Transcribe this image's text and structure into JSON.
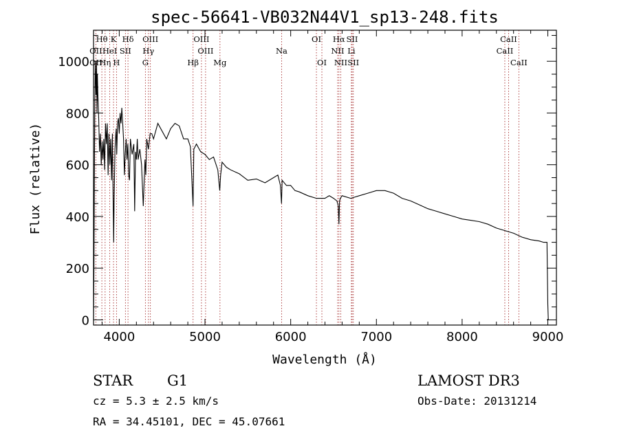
{
  "chart_data": {
    "type": "line",
    "title": "spec-56641-VB032N44V1_sp13-248.fits",
    "xlabel": "Wavelength (Å)",
    "ylabel": "Flux (relative)",
    "xlim": [
      3700,
      9100
    ],
    "ylim": [
      -20,
      1120
    ],
    "x_ticks": [
      4000,
      5000,
      6000,
      7000,
      8000,
      9000
    ],
    "y_ticks": [
      0,
      200,
      400,
      600,
      800,
      1000
    ],
    "x_tick_labels": [
      "4000",
      "5000",
      "6000",
      "7000",
      "8000",
      "9000"
    ],
    "y_tick_labels": [
      "0",
      "200",
      "400",
      "600",
      "800",
      "1000"
    ],
    "series": [
      {
        "name": "flux",
        "x": [
          3700,
          3705,
          3710,
          3715,
          3720,
          3725,
          3730,
          3735,
          3740,
          3745,
          3750,
          3760,
          3770,
          3780,
          3790,
          3800,
          3810,
          3820,
          3830,
          3840,
          3850,
          3860,
          3870,
          3880,
          3890,
          3900,
          3910,
          3920,
          3930,
          3935,
          3940,
          3950,
          3960,
          3965,
          3970,
          3980,
          3990,
          4000,
          4010,
          4020,
          4030,
          4040,
          4050,
          4060,
          4070,
          4080,
          4090,
          4100,
          4110,
          4120,
          4130,
          4150,
          4170,
          4180,
          4190,
          4200,
          4210,
          4220,
          4240,
          4260,
          4280,
          4300,
          4310,
          4320,
          4340,
          4360,
          4380,
          4400,
          4450,
          4500,
          4550,
          4600,
          4650,
          4700,
          4750,
          4800,
          4830,
          4861,
          4870,
          4900,
          4950,
          5000,
          5050,
          5100,
          5150,
          5172,
          5183,
          5200,
          5250,
          5300,
          5400,
          5500,
          5600,
          5700,
          5800,
          5850,
          5880,
          5893,
          5900,
          5950,
          6000,
          6050,
          6100,
          6200,
          6300,
          6400,
          6450,
          6500,
          6540,
          6555,
          6563,
          6570,
          6580,
          6600,
          6700,
          6800,
          6900,
          7000,
          7100,
          7200,
          7300,
          7400,
          7500,
          7600,
          7700,
          7800,
          7900,
          8000,
          8100,
          8200,
          8300,
          8400,
          8500,
          8600,
          8700,
          8800,
          8900,
          8950,
          8990,
          9000,
          9005
        ],
        "values": [
          0,
          200,
          550,
          850,
          1000,
          930,
          870,
          1000,
          800,
          950,
          880,
          780,
          650,
          720,
          600,
          690,
          620,
          700,
          580,
          760,
          680,
          760,
          560,
          720,
          600,
          700,
          540,
          720,
          420,
          300,
          460,
          660,
          720,
          740,
          640,
          760,
          780,
          720,
          800,
          760,
          820,
          760,
          700,
          560,
          640,
          700,
          620,
          680,
          560,
          540,
          700,
          640,
          680,
          420,
          650,
          620,
          700,
          620,
          660,
          600,
          440,
          620,
          560,
          700,
          660,
          720,
          720,
          700,
          760,
          730,
          700,
          740,
          760,
          750,
          700,
          700,
          670,
          440,
          660,
          680,
          650,
          640,
          620,
          630,
          580,
          500,
          560,
          610,
          590,
          580,
          565,
          540,
          545,
          530,
          550,
          560,
          520,
          450,
          540,
          520,
          520,
          500,
          495,
          480,
          470,
          470,
          480,
          470,
          460,
          440,
          370,
          460,
          470,
          480,
          470,
          480,
          490,
          500,
          500,
          490,
          470,
          460,
          445,
          430,
          420,
          410,
          400,
          390,
          385,
          380,
          370,
          355,
          345,
          335,
          320,
          310,
          305,
          300,
          300,
          60,
          0
        ]
      }
    ],
    "lines": [
      {
        "label": "Hθ",
        "x": 3797,
        "row": 1
      },
      {
        "label": "OII",
        "x": 3727,
        "row": 2
      },
      {
        "label": "OII",
        "x": 3727,
        "row": 3
      },
      {
        "label": "Hη",
        "x": 3835,
        "row": 3
      },
      {
        "label": "HeI",
        "x": 3889,
        "row": 2
      },
      {
        "label": "K",
        "x": 3933,
        "row": 1
      },
      {
        "label": "SII",
        "x": 4072,
        "row": 2
      },
      {
        "label": "H",
        "x": 3968,
        "row": 3
      },
      {
        "label": "Hδ",
        "x": 4102,
        "row": 1
      },
      {
        "label": "OIII",
        "x": 4363,
        "row": 1
      },
      {
        "label": "Hγ",
        "x": 4340,
        "row": 2
      },
      {
        "label": "G",
        "x": 4305,
        "row": 3
      },
      {
        "label": "Hβ",
        "x": 4861,
        "row": 3
      },
      {
        "label": "OIII",
        "x": 4959,
        "row": 1
      },
      {
        "label": "OIII",
        "x": 5007,
        "row": 2
      },
      {
        "label": "Mg",
        "x": 5175,
        "row": 3
      },
      {
        "label": "Na",
        "x": 5894,
        "row": 2
      },
      {
        "label": "OI",
        "x": 6300,
        "row": 1
      },
      {
        "label": "OI",
        "x": 6364,
        "row": 3
      },
      {
        "label": "Hα",
        "x": 6563,
        "row": 1
      },
      {
        "label": "NII",
        "x": 6548,
        "row": 2
      },
      {
        "label": "NII",
        "x": 6584,
        "row": 3
      },
      {
        "label": "SII",
        "x": 6717,
        "row": 1
      },
      {
        "label": "Li",
        "x": 6708,
        "row": 2
      },
      {
        "label": "SII",
        "x": 6731,
        "row": 3
      },
      {
        "label": "CaII",
        "x": 8542,
        "row": 1
      },
      {
        "label": "CaII",
        "x": 8498,
        "row": 2
      },
      {
        "label": "CaII",
        "x": 8662,
        "row": 3
      }
    ]
  },
  "info": {
    "object_class": "STAR",
    "subclass": "G1",
    "cz": "cz = 5.3 ± 2.5 km/s",
    "radec": "RA =  34.45101, DEC =  45.07661",
    "survey": "LAMOST DR3",
    "obs_date": "Obs-Date: 20131214"
  },
  "colors": {
    "axis": "#000000",
    "spectrum": "#000000",
    "line_markers": "#a52a2a"
  }
}
